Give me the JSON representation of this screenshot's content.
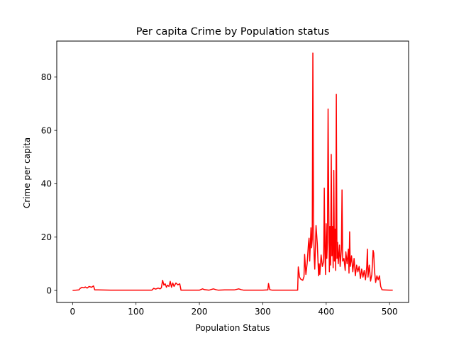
{
  "chart_data": {
    "type": "line",
    "title": "Per capita Crime by Population status",
    "xlabel": "Population Status",
    "ylabel": "Crime per capita",
    "xlim": [
      -25,
      530
    ],
    "ylim": [
      -4.5,
      93.5
    ],
    "xticks": [
      0,
      100,
      200,
      300,
      400,
      500
    ],
    "yticks": [
      0,
      20,
      40,
      60,
      80
    ],
    "grid": false,
    "color": "#ff0000",
    "series": [
      {
        "values": [
          [
            0,
            0.0
          ],
          [
            10,
            0.2
          ],
          [
            12,
            0.8
          ],
          [
            15,
            1.2
          ],
          [
            18,
            1.0
          ],
          [
            20,
            1.3
          ],
          [
            23,
            0.9
          ],
          [
            26,
            1.5
          ],
          [
            30,
            1.2
          ],
          [
            33,
            1.7
          ],
          [
            35,
            0.2
          ],
          [
            40,
            0.2
          ],
          [
            60,
            0.1
          ],
          [
            80,
            0.1
          ],
          [
            100,
            0.1
          ],
          [
            125,
            0.1
          ],
          [
            128,
            0.8
          ],
          [
            131,
            0.5
          ],
          [
            135,
            0.9
          ],
          [
            138,
            0.6
          ],
          [
            140,
            1.0
          ],
          [
            142,
            3.8
          ],
          [
            144,
            2.0
          ],
          [
            146,
            2.5
          ],
          [
            148,
            1.2
          ],
          [
            150,
            2.0
          ],
          [
            152,
            1.5
          ],
          [
            154,
            3.4
          ],
          [
            156,
            1.2
          ],
          [
            158,
            2.8
          ],
          [
            160,
            1.5
          ],
          [
            163,
            2.8
          ],
          [
            166,
            2.1
          ],
          [
            169,
            2.5
          ],
          [
            171,
            0.1
          ],
          [
            200,
            0.1
          ],
          [
            205,
            0.6
          ],
          [
            208,
            0.3
          ],
          [
            215,
            0.1
          ],
          [
            222,
            0.6
          ],
          [
            226,
            0.3
          ],
          [
            230,
            0.1
          ],
          [
            240,
            0.2
          ],
          [
            255,
            0.2
          ],
          [
            262,
            0.6
          ],
          [
            266,
            0.3
          ],
          [
            270,
            0.1
          ],
          [
            300,
            0.1
          ],
          [
            308,
            0.2
          ],
          [
            309,
            2.6
          ],
          [
            311,
            0.3
          ],
          [
            315,
            0.1
          ],
          [
            340,
            0.1
          ],
          [
            355,
            0.1
          ],
          [
            356,
            8.8
          ],
          [
            358,
            5.0
          ],
          [
            360,
            4.2
          ],
          [
            363,
            3.8
          ],
          [
            365,
            5.2
          ],
          [
            366,
            13.5
          ],
          [
            368,
            6.0
          ],
          [
            370,
            10.2
          ],
          [
            372,
            17.5
          ],
          [
            373,
            19.6
          ],
          [
            374,
            11.0
          ],
          [
            376,
            23.5
          ],
          [
            377,
            16.0
          ],
          [
            378,
            19.2
          ],
          [
            379,
            89.0
          ],
          [
            380,
            28.0
          ],
          [
            381,
            13.0
          ],
          [
            382,
            8.0
          ],
          [
            384,
            24.3
          ],
          [
            386,
            17.5
          ],
          [
            388,
            5.5
          ],
          [
            389,
            10.0
          ],
          [
            390,
            6.0
          ],
          [
            392,
            13.3
          ],
          [
            394,
            9.0
          ],
          [
            396,
            11.0
          ],
          [
            397,
            38.4
          ],
          [
            398,
            14.0
          ],
          [
            399,
            6.0
          ],
          [
            400,
            25.0
          ],
          [
            401,
            12.0
          ],
          [
            402,
            18.0
          ],
          [
            403,
            68.0
          ],
          [
            404,
            33.5
          ],
          [
            405,
            7.0
          ],
          [
            406,
            24.0
          ],
          [
            407,
            9.5
          ],
          [
            408,
            51.0
          ],
          [
            409,
            13.0
          ],
          [
            410,
            24.0
          ],
          [
            411,
            8.5
          ],
          [
            412,
            45.0
          ],
          [
            413,
            11.0
          ],
          [
            414,
            23.0
          ],
          [
            415,
            7.5
          ],
          [
            416,
            73.5
          ],
          [
            417,
            12.0
          ],
          [
            418,
            18.0
          ],
          [
            419,
            10.0
          ],
          [
            421,
            17.0
          ],
          [
            422,
            9.0
          ],
          [
            424,
            15.5
          ],
          [
            425,
            37.7
          ],
          [
            426,
            11.0
          ],
          [
            428,
            12.0
          ],
          [
            430,
            7.5
          ],
          [
            431,
            14.5
          ],
          [
            433,
            10.0
          ],
          [
            435,
            15.5
          ],
          [
            436,
            6.5
          ],
          [
            437,
            22.0
          ],
          [
            438,
            9.0
          ],
          [
            440,
            13.0
          ],
          [
            442,
            7.0
          ],
          [
            444,
            12.0
          ],
          [
            446,
            5.5
          ],
          [
            448,
            9.5
          ],
          [
            450,
            7.0
          ],
          [
            452,
            9.0
          ],
          [
            454,
            4.5
          ],
          [
            456,
            8.0
          ],
          [
            458,
            5.0
          ],
          [
            460,
            7.5
          ],
          [
            462,
            4.0
          ],
          [
            464,
            9.0
          ],
          [
            465,
            15.5
          ],
          [
            466,
            5.0
          ],
          [
            468,
            9.5
          ],
          [
            470,
            3.5
          ],
          [
            472,
            6.0
          ],
          [
            474,
            15.0
          ],
          [
            475,
            14.0
          ],
          [
            476,
            8.0
          ],
          [
            478,
            3.0
          ],
          [
            480,
            5.5
          ],
          [
            482,
            4.0
          ],
          [
            484,
            5.5
          ],
          [
            486,
            1.5
          ],
          [
            488,
            0.3
          ],
          [
            490,
            0.2
          ],
          [
            500,
            0.1
          ],
          [
            505,
            0.1
          ]
        ]
      }
    ]
  }
}
